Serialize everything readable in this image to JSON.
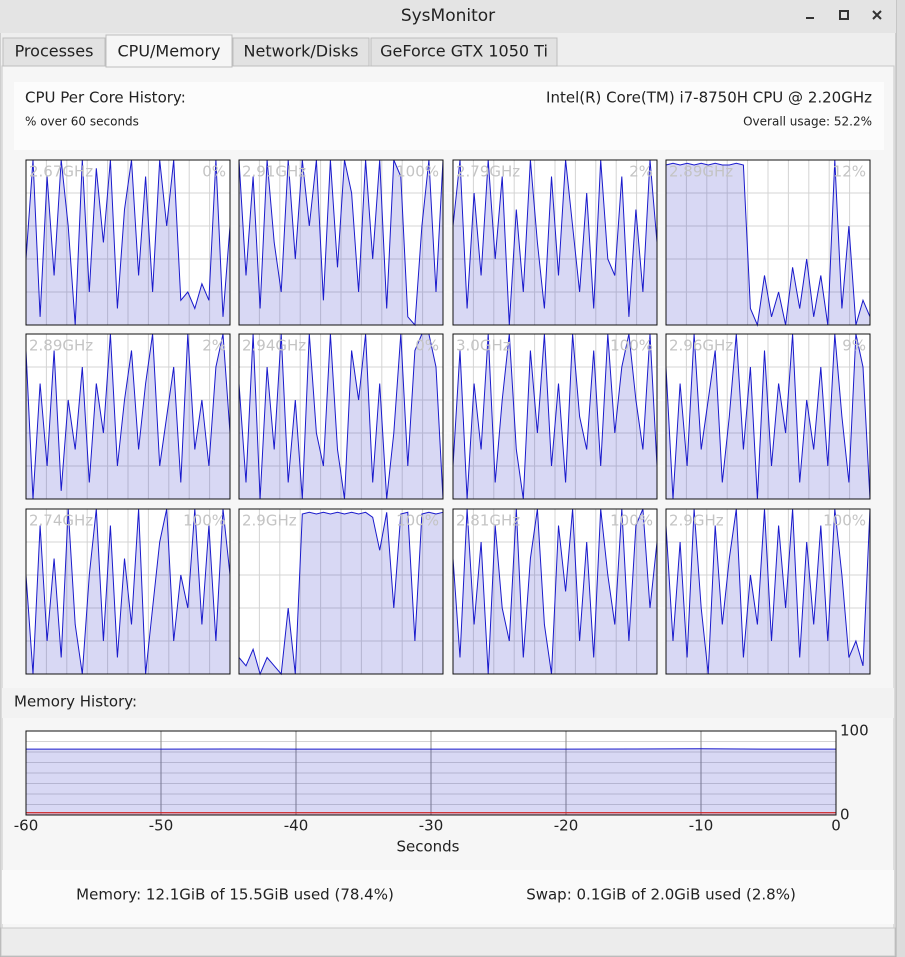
{
  "window": {
    "title": "SysMonitor"
  },
  "tabs": [
    "Processes",
    "CPU/Memory",
    "Network/Disks",
    "GeForce GTX 1050 Ti"
  ],
  "cpu": {
    "heading": "CPU Per Core History:",
    "subheading": "% over 60 seconds",
    "model": "Intel(R) Core(TM) i7-8750H CPU @ 2.20GHz",
    "overall": "Overall usage: 52.2%",
    "ylim": [
      0,
      100
    ],
    "cores": [
      {
        "freq": "2.67GHz",
        "usage": "0%",
        "values": [
          40,
          100,
          5,
          90,
          30,
          100,
          60,
          0,
          100,
          20,
          95,
          50,
          100,
          10,
          70,
          100,
          30,
          90,
          20,
          100,
          60,
          100,
          15,
          20,
          10,
          25,
          15,
          100,
          5,
          60
        ]
      },
      {
        "freq": "2.91GHz",
        "usage": "100%",
        "values": [
          100,
          30,
          90,
          10,
          100,
          50,
          20,
          100,
          40,
          100,
          60,
          100,
          15,
          100,
          35,
          100,
          80,
          20,
          100,
          40,
          100,
          10,
          100,
          90,
          5,
          0,
          60,
          100,
          20,
          100
        ]
      },
      {
        "freq": "2.79GHz",
        "usage": "2%",
        "values": [
          60,
          100,
          10,
          80,
          30,
          100,
          40,
          90,
          0,
          70,
          20,
          100,
          50,
          10,
          90,
          30,
          100,
          60,
          20,
          80,
          10,
          100,
          40,
          30,
          90,
          5,
          70,
          20,
          100,
          50
        ]
      },
      {
        "freq": "2.89GHz",
        "usage": "12%",
        "values": [
          97,
          98,
          97,
          98,
          97,
          98,
          97,
          98,
          97,
          97,
          98,
          97,
          10,
          0,
          30,
          5,
          20,
          0,
          35,
          10,
          40,
          5,
          30,
          0,
          100,
          10,
          60,
          0,
          15,
          5
        ]
      },
      {
        "freq": "2.89GHz",
        "usage": "2%",
        "values": [
          90,
          0,
          70,
          20,
          90,
          5,
          60,
          30,
          80,
          10,
          70,
          40,
          100,
          20,
          60,
          90,
          30,
          70,
          100,
          20,
          50,
          80,
          10,
          100,
          30,
          60,
          20,
          80,
          100,
          40
        ]
      },
      {
        "freq": "2.94GHz",
        "usage": "0%",
        "values": [
          70,
          10,
          100,
          0,
          80,
          30,
          100,
          10,
          60,
          0,
          100,
          40,
          20,
          100,
          30,
          0,
          90,
          60,
          100,
          10,
          70,
          0,
          40,
          100,
          20,
          90,
          100,
          100,
          80,
          0
        ]
      },
      {
        "freq": "3.0GHz",
        "usage": "100%",
        "values": [
          20,
          90,
          0,
          70,
          30,
          100,
          10,
          60,
          100,
          30,
          0,
          90,
          40,
          100,
          20,
          70,
          10,
          100,
          50,
          30,
          90,
          20,
          100,
          40,
          80,
          100,
          60,
          30,
          100,
          20
        ]
      },
      {
        "freq": "2.96GHz",
        "usage": "9%",
        "values": [
          80,
          0,
          70,
          20,
          100,
          30,
          60,
          90,
          10,
          50,
          100,
          30,
          80,
          0,
          90,
          20,
          70,
          40,
          100,
          10,
          60,
          30,
          80,
          20,
          100,
          50,
          10,
          100,
          80,
          0
        ]
      },
      {
        "freq": "2.74GHz",
        "usage": "100%",
        "values": [
          60,
          0,
          90,
          20,
          70,
          10,
          100,
          30,
          0,
          60,
          100,
          20,
          90,
          10,
          70,
          30,
          100,
          0,
          40,
          80,
          100,
          20,
          60,
          40,
          100,
          30,
          90,
          20,
          100,
          60
        ]
      },
      {
        "freq": "2.9GHz",
        "usage": "100%",
        "values": [
          10,
          5,
          15,
          0,
          10,
          5,
          0,
          40,
          0,
          97,
          98,
          97,
          98,
          97,
          98,
          97,
          98,
          97,
          98,
          95,
          75,
          98,
          40,
          97,
          98,
          20,
          97,
          98,
          97,
          98
        ]
      },
      {
        "freq": "2.81GHz",
        "usage": "100%",
        "values": [
          70,
          10,
          100,
          30,
          80,
          0,
          90,
          40,
          20,
          100,
          10,
          70,
          100,
          30,
          0,
          90,
          50,
          100,
          20,
          80,
          10,
          100,
          60,
          30,
          100,
          20,
          90,
          100,
          40,
          80
        ]
      },
      {
        "freq": "2.9GHz",
        "usage": "100%",
        "values": [
          90,
          20,
          80,
          10,
          100,
          40,
          0,
          90,
          30,
          70,
          100,
          10,
          60,
          30,
          100,
          20,
          90,
          40,
          100,
          10,
          80,
          30,
          90,
          20,
          100,
          60,
          10,
          20,
          5,
          100
        ]
      }
    ]
  },
  "memory": {
    "heading": "Memory History:",
    "xlabel": "Seconds",
    "xlim": [
      -60,
      0
    ],
    "xticks": [
      -60,
      -50,
      -40,
      -30,
      -20,
      -10,
      0
    ],
    "ylim": [
      0,
      100
    ],
    "yticks": [
      0,
      100
    ],
    "x": [
      -60,
      -55,
      -50,
      -45,
      -40,
      -35,
      -30,
      -25,
      -20,
      -15,
      -10,
      -5,
      0
    ],
    "series": [
      {
        "name": "Memory",
        "color": "#1a1acc",
        "values": [
          78.5,
          78.4,
          78.5,
          78.6,
          78.5,
          78.4,
          78.5,
          78.5,
          78.4,
          78.6,
          78.8,
          78.5,
          78.4
        ]
      },
      {
        "name": "Swap",
        "color": "#d02020",
        "values": [
          2.8,
          2.8,
          2.8,
          2.8,
          2.8,
          2.8,
          2.8,
          2.8,
          2.8,
          2.8,
          2.8,
          2.8,
          2.8
        ]
      }
    ],
    "memory_text": "Memory: 12.1GiB of 15.5GiB used (78.4%)",
    "swap_text": "Swap: 0.1GiB of 2.0GiB used (2.8%)"
  }
}
